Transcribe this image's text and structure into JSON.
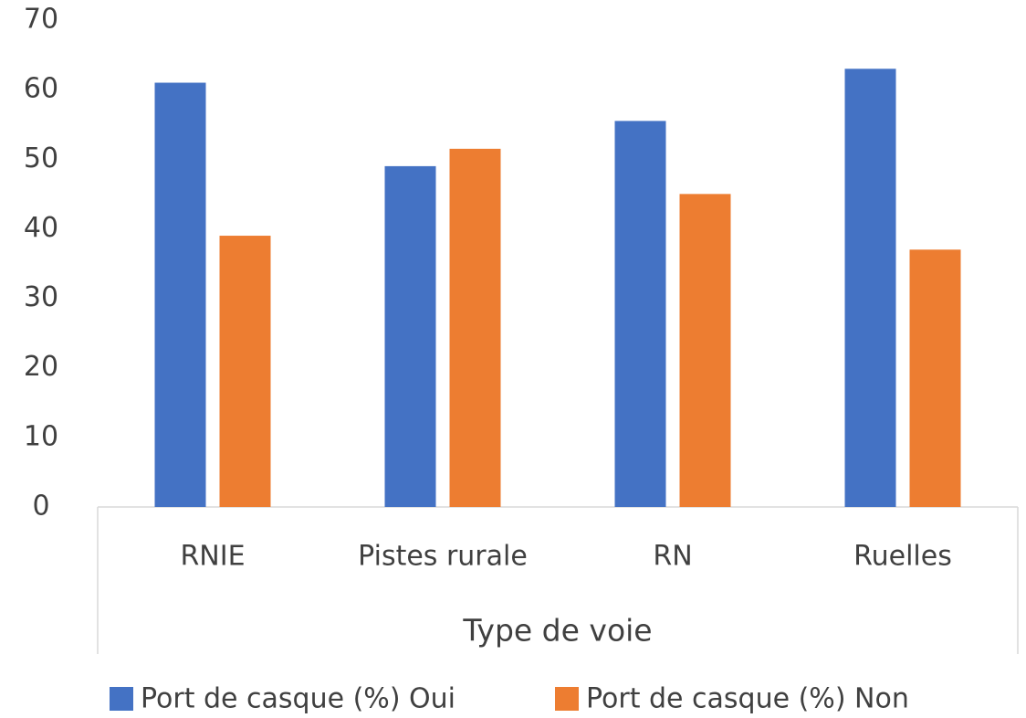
{
  "chart_data": {
    "type": "bar",
    "categories": [
      "RNIE",
      "Pistes rurale",
      "RN",
      "Ruelles"
    ],
    "series": [
      {
        "name": "Port de casque (%) Oui",
        "color": "#4472c4",
        "values": [
          61,
          49,
          55.5,
          63
        ]
      },
      {
        "name": "Port de casque (%) Non",
        "color": "#ed7d31",
        "values": [
          39,
          51.5,
          45,
          37
        ]
      }
    ],
    "x_label": "Type de voie",
    "ylim": [
      0,
      70
    ],
    "yticks": [
      0,
      10,
      20,
      30,
      40,
      50,
      60,
      70
    ],
    "grid": false,
    "legend": "bottom"
  }
}
